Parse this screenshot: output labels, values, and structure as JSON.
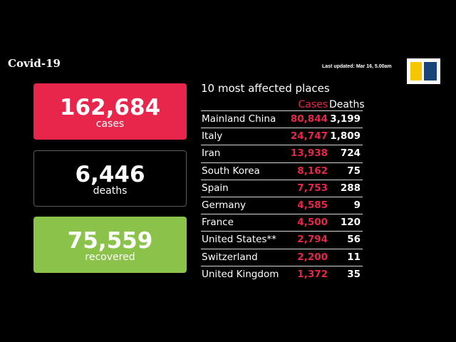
{
  "header": {
    "title": "Covid-19",
    "last_updated": "Last updated: Mar 16, 5.00am",
    "logo_icon": "scmp-logo-icon",
    "colors": {
      "cases": "#e8254a",
      "recovered": "#8bc34a",
      "logo_yellow": "#f6c600",
      "logo_blue": "#17457a"
    }
  },
  "summary": {
    "cases": {
      "value": "162,684",
      "label": "cases"
    },
    "deaths": {
      "value": "6,446",
      "label": "deaths"
    },
    "recovered": {
      "value": "75,559",
      "label": "recovered"
    }
  },
  "table": {
    "title": "10 most affected places",
    "col_cases": "Cases",
    "col_deaths": "Deaths",
    "rows": [
      {
        "place": "Mainland China",
        "cases": "80,844",
        "deaths": "3,199"
      },
      {
        "place": "Italy",
        "cases": "24,747",
        "deaths": "1,809"
      },
      {
        "place": "Iran",
        "cases": "13,938",
        "deaths": "724"
      },
      {
        "place": "South Korea",
        "cases": "8,162",
        "deaths": "75"
      },
      {
        "place": "Spain",
        "cases": "7,753",
        "deaths": "288"
      },
      {
        "place": "Germany",
        "cases": "4,585",
        "deaths": "9"
      },
      {
        "place": "France",
        "cases": "4,500",
        "deaths": "120"
      },
      {
        "place": "United States**",
        "cases": "2,794",
        "deaths": "56"
      },
      {
        "place": "Switzerland",
        "cases": "2,200",
        "deaths": "11"
      },
      {
        "place": "United Kingdom",
        "cases": "1,372",
        "deaths": "35"
      }
    ]
  }
}
